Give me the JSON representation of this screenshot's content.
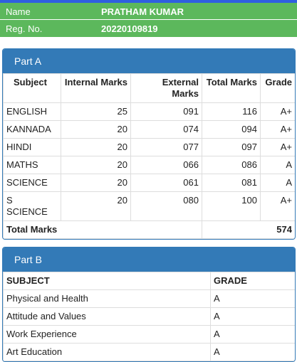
{
  "header": {
    "name_label": "Name",
    "name": "PRATHAM KUMAR",
    "reg_label": "Reg. No.",
    "reg_no": "20220109819"
  },
  "part_a": {
    "title": "Part A",
    "columns": [
      "Subject",
      "Internal Marks",
      "External Marks",
      "Total Marks",
      "Grade"
    ],
    "rows": [
      [
        "ENGLISH",
        "25",
        "091",
        "116",
        "A+"
      ],
      [
        "KANNADA",
        "20",
        "074",
        "094",
        "A+"
      ],
      [
        "HINDI",
        "20",
        "077",
        "097",
        "A+"
      ],
      [
        "MATHS",
        "20",
        "066",
        "086",
        "A"
      ],
      [
        "SCIENCE",
        "20",
        "061",
        "081",
        "A"
      ],
      [
        "S SCIENCE",
        "20",
        "080",
        "100",
        "A+"
      ]
    ],
    "total_label": "Total Marks",
    "total": "574"
  },
  "part_b": {
    "title": "Part B",
    "columns": [
      "SUBJECT",
      "GRADE"
    ],
    "rows": [
      [
        "Physical and Health",
        "A"
      ],
      [
        "Attitude and Values",
        "A"
      ],
      [
        "Work Experience",
        "A"
      ],
      [
        "Art Education",
        "A"
      ]
    ]
  }
}
